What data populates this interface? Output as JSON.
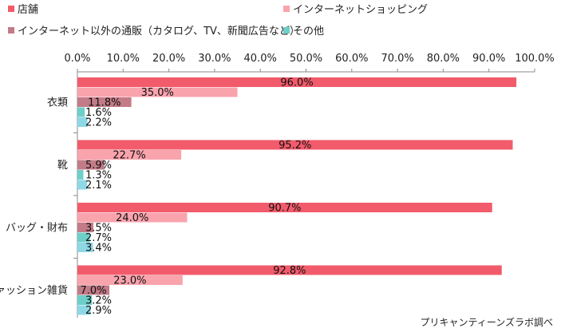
{
  "chart_data": {
    "type": "bar",
    "orientation": "horizontal",
    "categories": [
      "衣類",
      "靴",
      "バッグ・財布",
      "ファッション雑貨"
    ],
    "series": [
      {
        "name": "店舗",
        "color": "#f25b6b",
        "values": [
          96.0,
          95.2,
          90.7,
          92.8
        ]
      },
      {
        "name": "インターネットショッピング",
        "color": "#f9a3ad",
        "values": [
          35.0,
          22.7,
          24.0,
          23.0
        ]
      },
      {
        "name": "インターネット以外の通販（カタログ、TV、新聞広告など）",
        "color": "#c27b87",
        "values": [
          11.8,
          5.9,
          3.5,
          7.0
        ]
      },
      {
        "name": "その他",
        "color": "#6ccfc8",
        "values": [
          1.6,
          1.3,
          2.7,
          3.2
        ]
      },
      {
        "name": "",
        "color": "#8ed8e6",
        "values": [
          2.2,
          2.1,
          3.4,
          2.9
        ]
      }
    ],
    "value_labels": [
      [
        "96.0%",
        "35.0%",
        "11.8%",
        "1.6%",
        "2.2%"
      ],
      [
        "95.2%",
        "22.7%",
        "5.9%",
        "1.3%",
        "2.1%"
      ],
      [
        "90.7%",
        "24.0%",
        "3.5%",
        "2.7%",
        "3.4%"
      ],
      [
        "92.8%",
        "23.0%",
        "7.0%",
        "3.2%",
        "2.9%"
      ]
    ],
    "xlim": [
      0,
      100
    ],
    "xticks": [
      "0.0%",
      "10.0%",
      "20.0%",
      "30.0%",
      "40.0%",
      "50.0%",
      "60.0%",
      "70.0%",
      "80.0%",
      "90.0%",
      "100.0%"
    ],
    "xaxis_position": "top",
    "legend_placement": "top",
    "grid": false,
    "source": "プリキャンティーンズラボ調べ"
  }
}
